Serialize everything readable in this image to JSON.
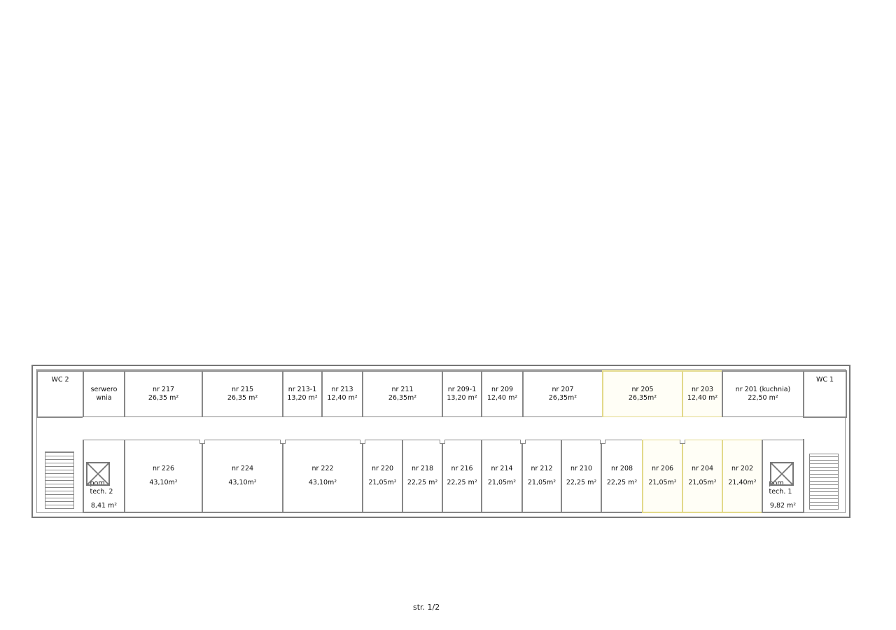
{
  "highlight_color": "#e2d98a",
  "rooms_top": [
    {
      "label": "WC 2",
      "area": ""
    },
    {
      "label": "serwero",
      "area": "wnia"
    },
    {
      "label": "nr 217",
      "area": "26,35 m²"
    },
    {
      "label": "nr 215",
      "area": "26,35 m²"
    },
    {
      "label": "nr 213-1",
      "area": "13,20 m²"
    },
    {
      "label": "nr 213",
      "area": "12,40 m²"
    },
    {
      "label": "nr 211",
      "area": "26,35m²"
    },
    {
      "label": "nr 209-1",
      "area": "13,20 m²"
    },
    {
      "label": "nr 209",
      "area": "12,40 m²"
    },
    {
      "label": "nr 207",
      "area": "26,35m²"
    },
    {
      "label": "nr 205",
      "area": "26,35m²",
      "highlighted": true
    },
    {
      "label": "nr 203",
      "area": "12,40 m²",
      "highlighted": true
    },
    {
      "label": "nr 201 (kuchnia)",
      "area": "22,50 m²"
    },
    {
      "label": "WC 1",
      "area": ""
    }
  ],
  "rooms_bottom": [
    {
      "label": "pom. tech. 2",
      "area": "8,41 m²"
    },
    {
      "label": "nr 226",
      "area": "43,10m²"
    },
    {
      "label": "nr 224",
      "area": "43,10m²"
    },
    {
      "label": "nr 222",
      "area": "43,10m²"
    },
    {
      "label": "nr 220",
      "area": "21,05m²"
    },
    {
      "label": "nr 218",
      "area": "22,25 m²"
    },
    {
      "label": "nr 216",
      "area": "22,25 m²"
    },
    {
      "label": "nr 214",
      "area": "21,05m²"
    },
    {
      "label": "nr 212",
      "area": "21,05m²"
    },
    {
      "label": "nr 210",
      "area": "22,25 m²"
    },
    {
      "label": "nr 208",
      "area": "22,25 m²"
    },
    {
      "label": "nr 206",
      "area": "21,05m²",
      "highlighted": true
    },
    {
      "label": "nr 204",
      "area": "21,05m²",
      "highlighted": true
    },
    {
      "label": "nr 202",
      "area": "21,40m²",
      "highlighted": true
    },
    {
      "label": "pom. tech. 1",
      "area": "9,82 m²"
    }
  ],
  "footer": {
    "page": "str. 1/2"
  }
}
